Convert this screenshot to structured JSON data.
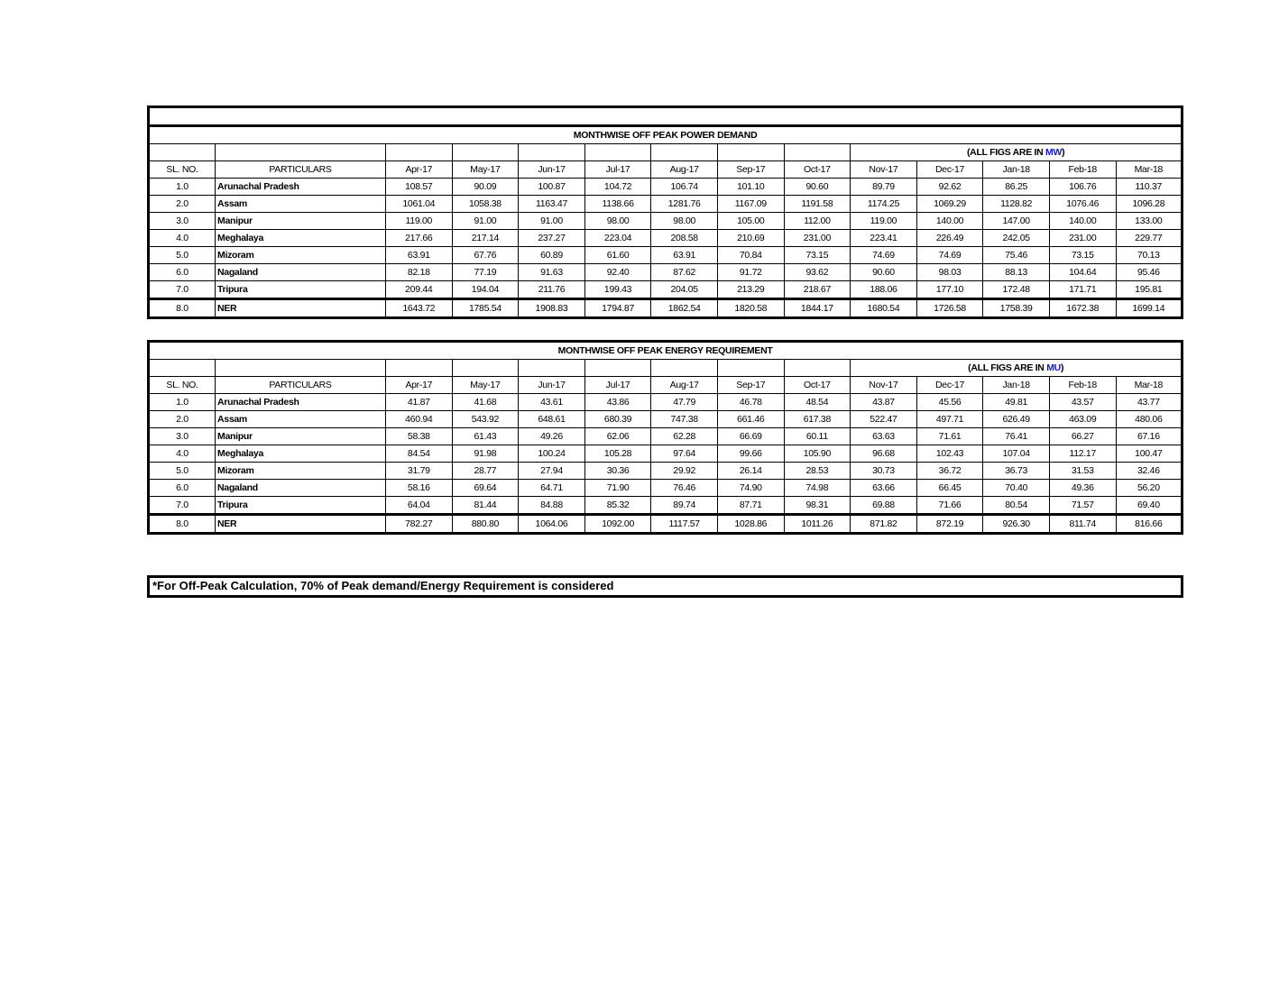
{
  "columns": {
    "sl": "SL. NO.",
    "particulars": "PARTICULARS",
    "months": [
      "Apr-17",
      "May-17",
      "Jun-17",
      "Jul-17",
      "Aug-17",
      "Sep-17",
      "Oct-17",
      "Nov-17",
      "Dec-17",
      "Jan-18",
      "Feb-18",
      "Mar-18"
    ]
  },
  "tables": [
    {
      "title": "MONTHWISE OFF PEAK POWER DEMAND",
      "units_prefix": "(ALL FIGS ARE IN ",
      "unit": "MW",
      "units_suffix": ")",
      "rows": [
        {
          "sl": "1.0",
          "name": "Arunachal Pradesh",
          "values": [
            "108.57",
            "90.09",
            "100.87",
            "104.72",
            "106.74",
            "101.10",
            "90.60",
            "89.79",
            "92.62",
            "86.25",
            "106.76",
            "110.37"
          ]
        },
        {
          "sl": "2.0",
          "name": "Assam",
          "values": [
            "1061.04",
            "1058.38",
            "1163.47",
            "1138.66",
            "1281.76",
            "1167.09",
            "1191.58",
            "1174.25",
            "1069.29",
            "1128.82",
            "1076.46",
            "1096.28"
          ]
        },
        {
          "sl": "3.0",
          "name": "Manipur",
          "values": [
            "119.00",
            "91.00",
            "91.00",
            "98.00",
            "98.00",
            "105.00",
            "112.00",
            "119.00",
            "140.00",
            "147.00",
            "140.00",
            "133.00"
          ]
        },
        {
          "sl": "4.0",
          "name": "Meghalaya",
          "values": [
            "217.66",
            "217.14",
            "237.27",
            "223.04",
            "208.58",
            "210.69",
            "231.00",
            "223.41",
            "226.49",
            "242.05",
            "231.00",
            "229.77"
          ]
        },
        {
          "sl": "5.0",
          "name": "Mizoram",
          "values": [
            "63.91",
            "67.76",
            "60.89",
            "61.60",
            "63.91",
            "70.84",
            "73.15",
            "74.69",
            "74.69",
            "75.46",
            "73.15",
            "70.13"
          ]
        },
        {
          "sl": "6.0",
          "name": "Nagaland",
          "values": [
            "82.18",
            "77.19",
            "91.63",
            "92.40",
            "87.62",
            "91.72",
            "93.62",
            "90.60",
            "98.03",
            "88.13",
            "104.64",
            "95.46"
          ]
        },
        {
          "sl": "7.0",
          "name": "Tripura",
          "values": [
            "209.44",
            "194.04",
            "211.76",
            "199.43",
            "204.05",
            "213.29",
            "218.67",
            "188.06",
            "177.10",
            "172.48",
            "171.71",
            "195.81"
          ]
        },
        {
          "sl": "8.0",
          "name": "NER",
          "values": [
            "1643.72",
            "1785.54",
            "1908.83",
            "1794.87",
            "1862.54",
            "1820.58",
            "1844.17",
            "1680.54",
            "1726.58",
            "1758.39",
            "1672.38",
            "1699.14"
          ]
        }
      ]
    },
    {
      "title": "MONTHWISE OFF PEAK ENERGY REQUIREMENT",
      "units_prefix": "(ALL FIGS ARE IN ",
      "unit": "MU",
      "units_suffix": ")",
      "rows": [
        {
          "sl": "1.0",
          "name": "Arunachal Pradesh",
          "values": [
            "41.87",
            "41.68",
            "43.61",
            "43.86",
            "47.79",
            "46.78",
            "48.54",
            "43.87",
            "45.56",
            "49.81",
            "43.57",
            "43.77"
          ]
        },
        {
          "sl": "2.0",
          "name": "Assam",
          "values": [
            "460.94",
            "543.92",
            "648.61",
            "680.39",
            "747.38",
            "661.46",
            "617.38",
            "522.47",
            "497.71",
            "626.49",
            "463.09",
            "480.06"
          ]
        },
        {
          "sl": "3.0",
          "name": "Manipur",
          "values": [
            "58.38",
            "61.43",
            "49.26",
            "62.06",
            "62.28",
            "66.69",
            "60.11",
            "63.63",
            "71.61",
            "76.41",
            "66.27",
            "67.16"
          ]
        },
        {
          "sl": "4.0",
          "name": "Meghalaya",
          "values": [
            "84.54",
            "91.98",
            "100.24",
            "105.28",
            "97.64",
            "99.66",
            "105.90",
            "96.68",
            "102.43",
            "107.04",
            "112.17",
            "100.47"
          ]
        },
        {
          "sl": "5.0",
          "name": "Mizoram",
          "values": [
            "31.79",
            "28.77",
            "27.94",
            "30.36",
            "29.92",
            "26.14",
            "28.53",
            "30.73",
            "36.72",
            "36.73",
            "31.53",
            "32.46"
          ]
        },
        {
          "sl": "6.0",
          "name": "Nagaland",
          "values": [
            "58.16",
            "69.64",
            "64.71",
            "71.90",
            "76.46",
            "74.90",
            "74.98",
            "63.66",
            "66.45",
            "70.40",
            "49.36",
            "56.20"
          ]
        },
        {
          "sl": "7.0",
          "name": "Tripura",
          "values": [
            "64.04",
            "81.44",
            "84.88",
            "85.32",
            "89.74",
            "87.71",
            "98.31",
            "69.88",
            "71.66",
            "80.54",
            "71.57",
            "69.40"
          ]
        },
        {
          "sl": "8.0",
          "name": "NER",
          "values": [
            "782.27",
            "880.80",
            "1064.06",
            "1092.00",
            "1117.57",
            "1028.86",
            "1011.26",
            "871.82",
            "872.19",
            "926.30",
            "811.74",
            "816.66"
          ]
        }
      ]
    }
  ],
  "footnote": "*For Off-Peak Calculation, 70% of Peak demand/Energy Requirement is considered",
  "colors": {
    "unit": "#1414d8"
  }
}
